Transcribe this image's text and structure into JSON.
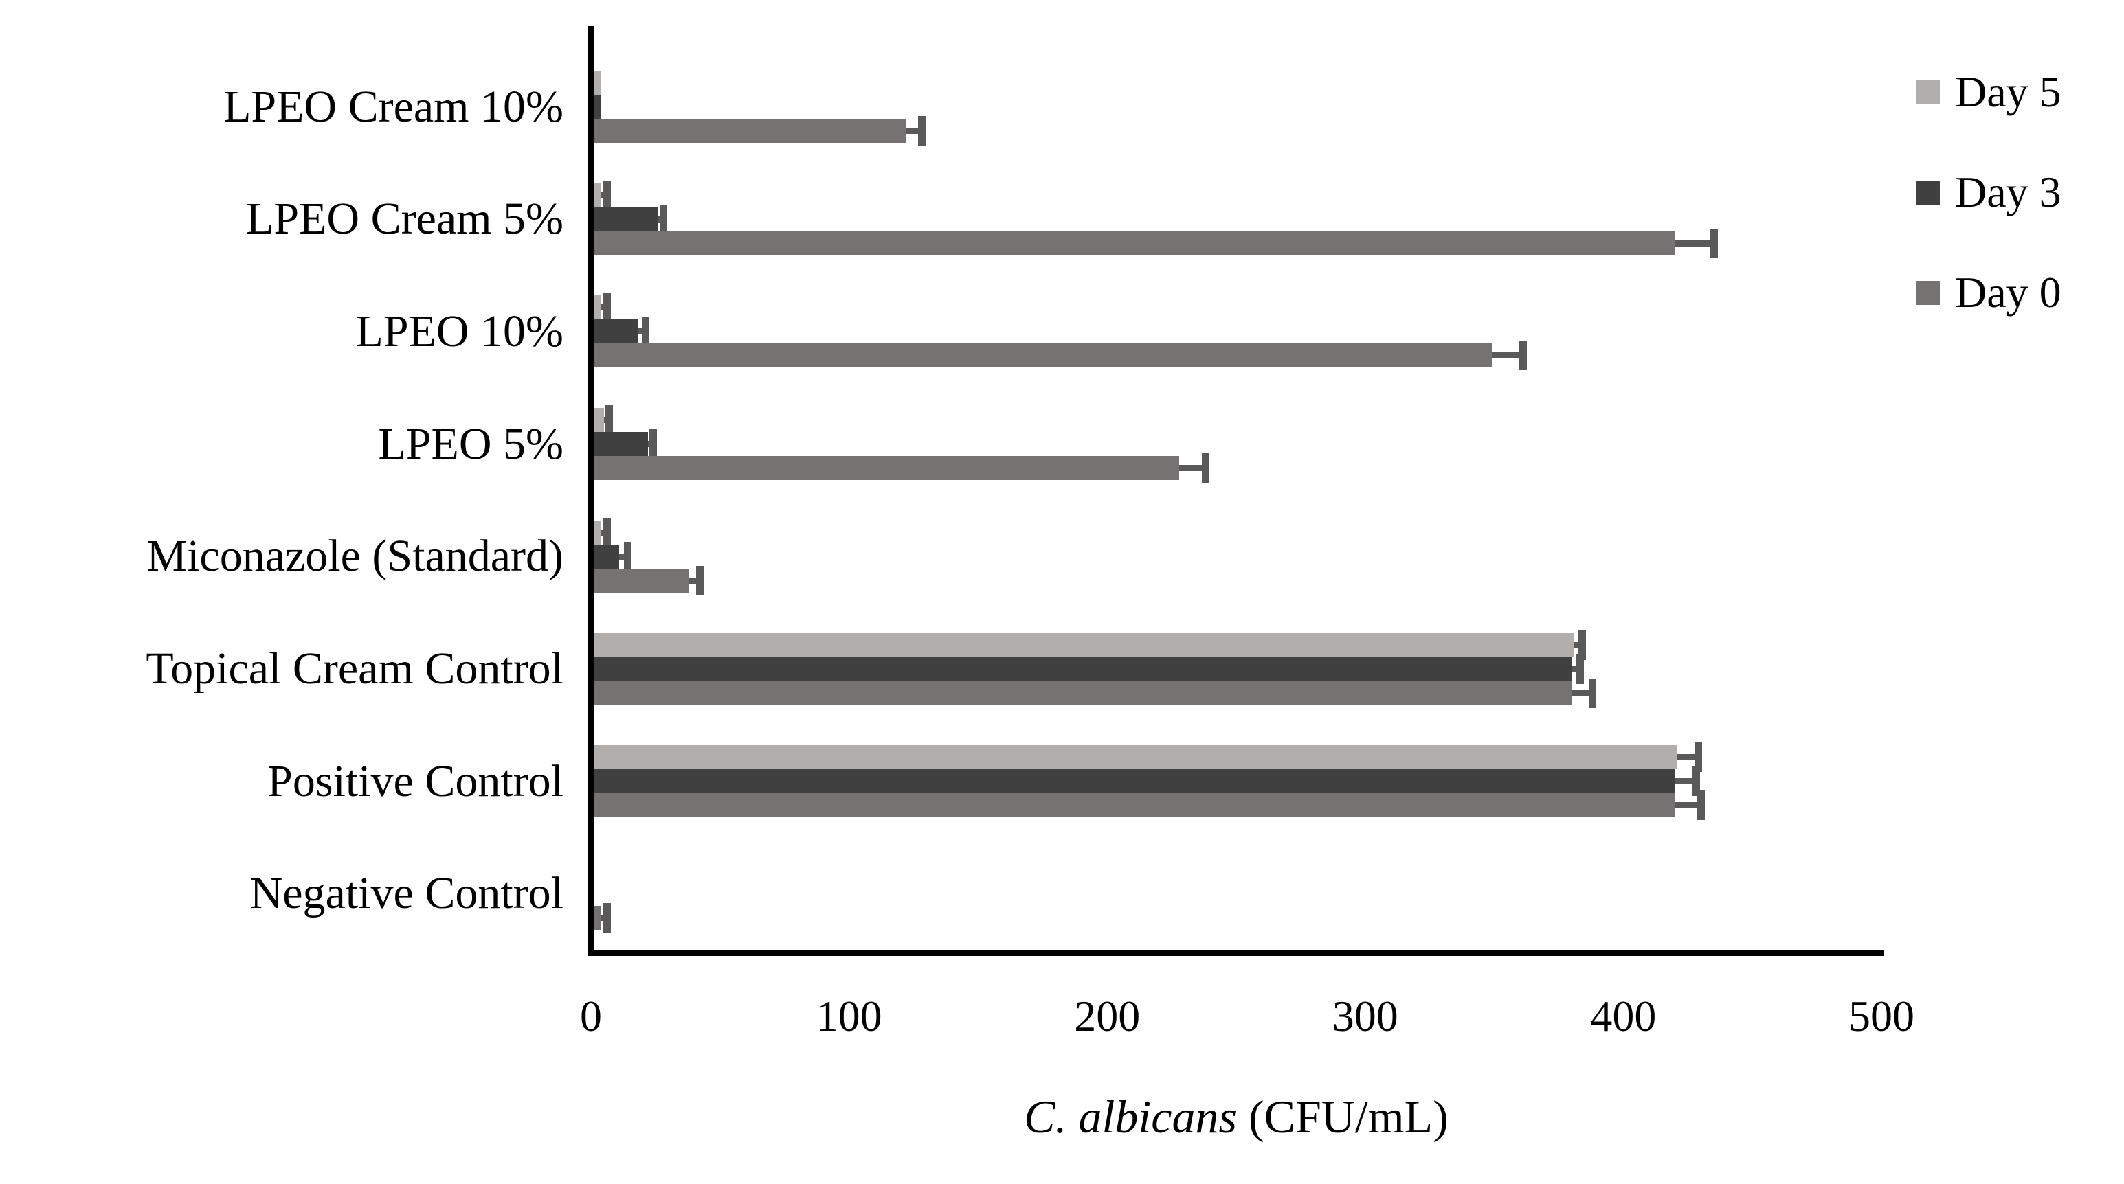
{
  "chart_data": {
    "type": "bar",
    "orientation": "horizontal",
    "xlabel_italic": "C. albicans",
    "xlabel_units": " (CFU/mL)",
    "categories": [
      "LPEO Cream 10%",
      "LPEO Cream 5%",
      "LPEO 10%",
      "LPEO 5%",
      "Miconazole (Standard)",
      "Topical Cream Control",
      "Positive Control",
      "Negative Control"
    ],
    "series": [
      {
        "name": "Day 5",
        "color": "#b1aeac",
        "values": [
          4,
          4,
          4,
          5,
          4,
          381,
          421,
          0
        ],
        "errors": [
          0,
          2,
          2,
          2,
          2,
          3,
          8,
          0
        ]
      },
      {
        "name": "Day 3",
        "color": "#404040",
        "values": [
          4,
          26,
          18,
          22,
          11,
          380,
          420,
          0
        ],
        "errors": [
          0,
          2,
          3,
          2,
          3,
          3,
          8,
          0
        ]
      },
      {
        "name": "Day 0",
        "color": "#767272",
        "values": [
          122,
          420,
          349,
          228,
          38,
          380,
          420,
          4
        ],
        "errors": [
          6,
          15,
          12,
          10,
          4,
          8,
          10,
          2
        ]
      }
    ],
    "x_ticks": [
      0,
      100,
      200,
      300,
      400,
      500
    ],
    "xlim": [
      0,
      500
    ],
    "grid": false,
    "legend_position": "top-right",
    "error_bar_color": "#595959",
    "axis_color": "#000000"
  }
}
